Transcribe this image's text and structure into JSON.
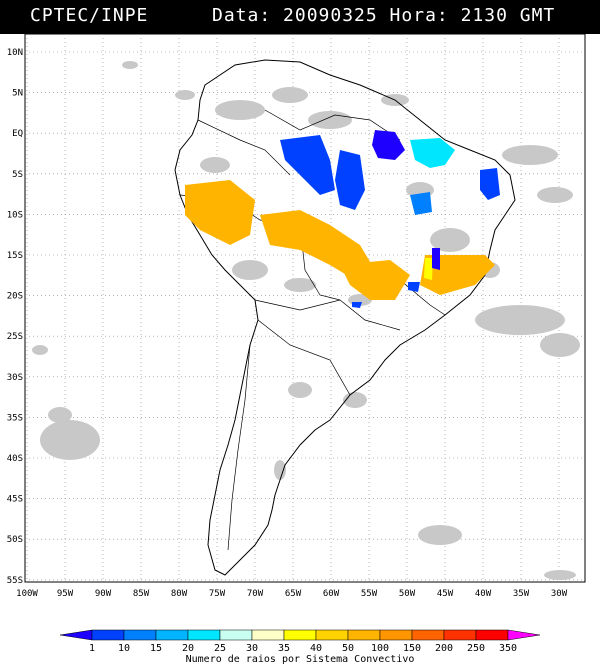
{
  "header": {
    "agency": "CPTEC/INPE",
    "datetime": "Data: 20090325 Hora: 2130 GMT"
  },
  "map": {
    "region": "South America",
    "lat_labels": [
      "10N",
      "5N",
      "EQ",
      "5S",
      "10S",
      "15S",
      "20S",
      "25S",
      "30S",
      "35S",
      "40S",
      "45S",
      "50S",
      "55S"
    ],
    "lon_labels": [
      "100W",
      "95W",
      "90W",
      "85W",
      "80W",
      "75W",
      "70W",
      "65W",
      "60W",
      "55W",
      "50W",
      "45W",
      "40W",
      "35W",
      "30W"
    ],
    "grid": true,
    "grid_style": "dotted",
    "cloud_color": "#c8c8c8"
  },
  "legend": {
    "title": "Numero de raios por Sistema Convectivo",
    "values": [
      "1",
      "10",
      "15",
      "20",
      "25",
      "30",
      "35",
      "40",
      "50",
      "100",
      "150",
      "200",
      "250",
      "350"
    ],
    "colors": [
      "#1e00ff",
      "#0040ff",
      "#0080ff",
      "#00b4ff",
      "#00e6ff",
      "#c8fff0",
      "#ffffc8",
      "#ffff00",
      "#ffd200",
      "#ffb400",
      "#ff9600",
      "#ff6400",
      "#ff3200",
      "#ff0000",
      "#ff00ff"
    ]
  }
}
